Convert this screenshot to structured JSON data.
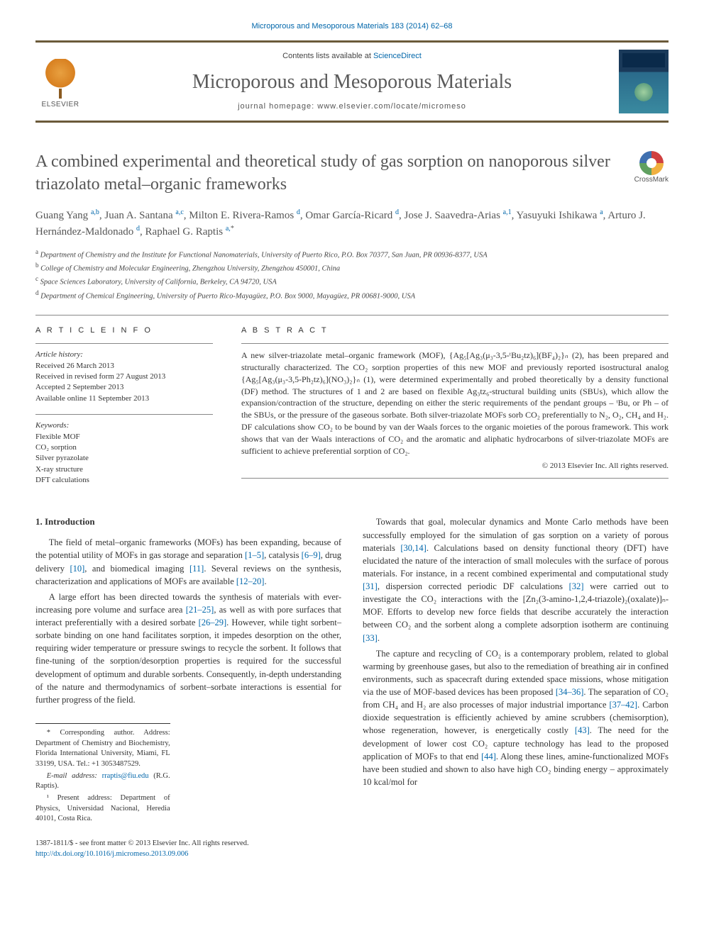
{
  "top_citation": "Microporous and Mesoporous Materials 183 (2014) 62–68",
  "masthead": {
    "elsevier": "ELSEVIER",
    "contents_prefix": "Contents lists available at ",
    "contents_link": "ScienceDirect",
    "journal": "Microporous and Mesoporous Materials",
    "homepage_label": "journal homepage: www.elsevier.com/locate/micromeso"
  },
  "crossmark": "CrossMark",
  "title": "A combined experimental and theoretical study of gas sorption on nanoporous silver triazolato metal–organic frameworks",
  "authors_html": "Guang Yang <sup>a,b</sup>, Juan A. Santana <sup>a,c</sup>, Milton E. Rivera-Ramos <sup>d</sup>, Omar García-Ricard <sup>d</sup>, Jose J. Saavedra-Arias <sup>a,1</sup>, Yasuyuki Ishikawa <sup>a</sup>, Arturo J. Hernández-Maldonado <sup>d</sup>, Raphael G. Raptis <sup>a,</sup><sup class=\"star-sup\">*</sup>",
  "affiliations": [
    "a Department of Chemistry and the Institute for Functional Nanomaterials, University of Puerto Rico, P.O. Box 70377, San Juan, PR 00936-8377, USA",
    "b College of Chemistry and Molecular Engineering, Zhengzhou University, Zhengzhou 450001, China",
    "c Space Sciences Laboratory, University of California, Berkeley, CA 94720, USA",
    "d Department of Chemical Engineering, University of Puerto Rico-Mayagüez, P.O. Box 9000, Mayagüez, PR 00681-9000, USA"
  ],
  "article_info": {
    "heading": "A R T I C L E   I N F O",
    "history_label": "Article history:",
    "history": [
      "Received 26 March 2013",
      "Received in revised form 27 August 2013",
      "Accepted 2 September 2013",
      "Available online 11 September 2013"
    ],
    "keywords_label": "Keywords:",
    "keywords": [
      "Flexible MOF",
      "CO₂ sorption",
      "Silver pyrazolate",
      "X-ray structure",
      "DFT calculations"
    ]
  },
  "abstract": {
    "heading": "A B S T R A C T",
    "text": "A new silver-triazolate metal–organic framework (MOF), {Ag₅[Ag₃(μ₃-3,5-ᵗBu₂tz)₆](BF₄)₂}ₙ (2), has been prepared and structurally characterized. The CO₂ sorption properties of this new MOF and previously reported isostructural analog {Ag₅[Ag₃(μ₃-3,5-Ph₂tz)₆](NO₃)₂}ₙ (1), were determined experimentally and probed theoretically by a density functional (DF) method. The structures of 1 and 2 are based on flexible Ag₃tz₆-structural building units (SBUs), which allow the expansion/contraction of the structure, depending on either the steric requirements of the pendant groups – ᵗBu, or Ph – of the SBUs, or the pressure of the gaseous sorbate. Both silver-triazolate MOFs sorb CO₂ preferentially to N₂, O₂, CH₄ and H₂. DF calculations show CO₂ to be bound by van der Waals forces to the organic moieties of the porous framework. This work shows that van der Waals interactions of CO₂ and the aromatic and aliphatic hydrocarbons of silver-triazolate MOFs are sufficient to achieve preferential sorption of CO₂.",
    "copyright": "© 2013 Elsevier Inc. All rights reserved."
  },
  "section1": {
    "heading": "1. Introduction",
    "p1_a": "The field of metal–organic frameworks (MOFs) has been expanding, because of the potential utility of MOFs in gas storage and separation ",
    "p1_c1": "[1–5]",
    "p1_b": ", catalysis ",
    "p1_c2": "[6–9]",
    "p1_c": ", drug delivery ",
    "p1_c3": "[10]",
    "p1_d": ", and biomedical imaging ",
    "p1_c4": "[11]",
    "p1_e": ". Several reviews on the synthesis, characterization and applications of MOFs are available ",
    "p1_c5": "[12–20]",
    "p1_f": ".",
    "p2_a": "A large effort has been directed towards the synthesis of materials with ever-increasing pore volume and surface area ",
    "p2_c1": "[21–25]",
    "p2_b": ", as well as with pore surfaces that interact preferentially with a desired sorbate ",
    "p2_c2": "[26–29]",
    "p2_c": ". However, while tight sorbent–sorbate binding on one hand facilitates sorption, it impedes desorption on the other, requiring wider temperature or pressure swings to recycle the sorbent. It follows that fine-tuning of the sorption/desorption properties is required for the successful development of optimum and durable sorbents. Consequently, in-depth understanding of the nature and thermodynamics of sorbent–sorbate interactions is essential for further progress of the field.",
    "p3_a": "Towards that goal, molecular dynamics and Monte Carlo methods have been successfully employed for the simulation of gas sorption on a variety of porous materials ",
    "p3_c1": "[30,14]",
    "p3_b": ". Calculations based on density functional theory (DFT) have elucidated the nature of the interaction of small molecules with the surface of porous materials. For instance, in a recent combined experimental and computational study ",
    "p3_c2": "[31]",
    "p3_c": ", dispersion corrected periodic DF calculations ",
    "p3_c3": "[32]",
    "p3_d": " were carried out to investigate the CO₂ interactions with the [Zn₂(3-amino-1,2,4-triazole)₂(oxalate)]ₙ-MOF. Efforts to develop new force fields that describe accurately the interaction between CO₂ and the sorbent along a complete adsorption isotherm are continuing ",
    "p3_c4": "[33]",
    "p3_e": ".",
    "p4_a": "The capture and recycling of CO₂ is a contemporary problem, related to global warming by greenhouse gases, but also to the remediation of breathing air in confined environments, such as spacecraft during extended space missions, whose mitigation via the use of MOF-based devices has been proposed ",
    "p4_c1": "[34–36]",
    "p4_b": ". The separation of CO₂ from CH₄ and H₂ are also processes of major industrial importance ",
    "p4_c2": "[37–42]",
    "p4_c": ". Carbon dioxide sequestration is efficiently achieved by amine scrubbers (chemisorption), whose regeneration, however, is energetically costly ",
    "p4_c3": "[43]",
    "p4_d": ". The need for the development of lower cost CO₂ capture technology has lead to the proposed application of MOFs to that end ",
    "p4_c4": "[44]",
    "p4_e": ". Along these lines, amine-functionalized MOFs have been studied and shown to also have high CO₂ binding energy – approximately 10 kcal/mol for"
  },
  "footnotes": {
    "corr": "* Corresponding author. Address: Department of Chemistry and Biochemistry, Florida International University, Miami, FL 33199, USA. Tel.: +1 3053487529.",
    "email_label": "E-mail address: ",
    "email": "rraptis@fiu.edu",
    "email_tail": " (R.G. Raptis).",
    "fn1": "¹ Present address: Department of Physics, Universidad Nacional, Heredia 40101, Costa Rica."
  },
  "footer": {
    "line1": "1387-1811/$ - see front matter © 2013 Elsevier Inc. All rights reserved.",
    "doi": "http://dx.doi.org/10.1016/j.micromeso.2013.09.006"
  }
}
